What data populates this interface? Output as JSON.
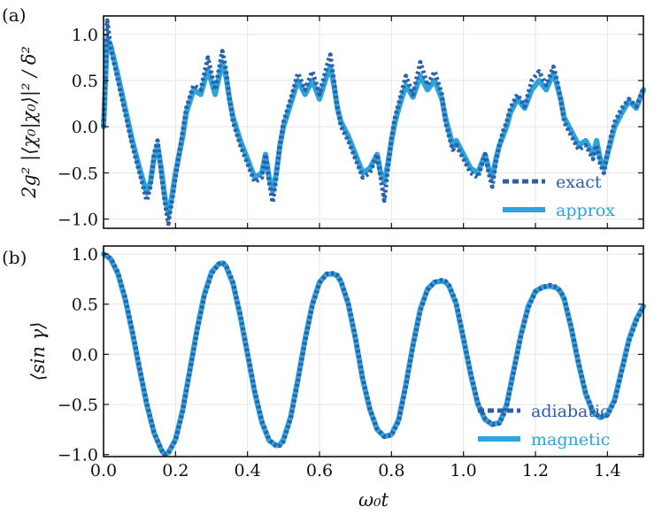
{
  "colors": {
    "exact": "#2b5fa8",
    "approx": "#2fa3dc",
    "adiabatic": "#2b5fa8",
    "magnetic": "#2fa3dc",
    "grid": "#e6e6e6"
  },
  "chart_data": [
    {
      "type": "line",
      "panel_label": "(a)",
      "ylabel": "2g² |⟨χ₀|χ₀⟩|² / δ²",
      "xlabel": "",
      "xlim": [
        0.0,
        1.5
      ],
      "ylim": [
        -1.1,
        1.2
      ],
      "xticks": [
        0.0,
        0.2,
        0.4,
        0.6,
        0.8,
        1.0,
        1.2,
        1.4
      ],
      "yticks": [
        -1.0,
        -0.5,
        0.0,
        0.5,
        1.0
      ],
      "ytick_labels": [
        "−1.0",
        "−0.5",
        "0.0",
        "0.5",
        "1.0"
      ],
      "xtick_labels": [
        "",
        "",
        "",
        "",
        "",
        "",
        "",
        ""
      ],
      "legend": [
        {
          "label": "exact",
          "style": "dashed",
          "color": "#2b5fa8"
        },
        {
          "label": "approx",
          "style": "solid",
          "color": "#2fa3dc"
        }
      ],
      "series": [
        {
          "name": "approx",
          "style": "solid",
          "color": "#2fa3dc",
          "x": [
            0.0,
            0.01,
            0.02,
            0.04,
            0.06,
            0.08,
            0.1,
            0.12,
            0.13,
            0.14,
            0.15,
            0.16,
            0.17,
            0.18,
            0.19,
            0.2,
            0.21,
            0.22,
            0.23,
            0.25,
            0.27,
            0.29,
            0.31,
            0.33,
            0.34,
            0.35,
            0.36,
            0.38,
            0.4,
            0.42,
            0.44,
            0.45,
            0.46,
            0.47,
            0.48,
            0.49,
            0.5,
            0.52,
            0.54,
            0.56,
            0.58,
            0.6,
            0.62,
            0.63,
            0.64,
            0.65,
            0.66,
            0.68,
            0.7,
            0.72,
            0.74,
            0.76,
            0.77,
            0.78,
            0.79,
            0.8,
            0.81,
            0.82,
            0.84,
            0.86,
            0.88,
            0.9,
            0.92,
            0.94,
            0.95,
            0.96,
            0.97,
            0.98,
            1.0,
            1.02,
            1.04,
            1.06,
            1.07,
            1.08,
            1.09,
            1.1,
            1.11,
            1.12,
            1.13,
            1.15,
            1.17,
            1.19,
            1.21,
            1.23,
            1.25,
            1.26,
            1.27,
            1.28,
            1.3,
            1.32,
            1.34,
            1.36,
            1.37,
            1.38,
            1.39,
            1.4,
            1.41,
            1.42,
            1.44,
            1.46,
            1.48,
            1.5
          ],
          "y": [
            0.0,
            0.95,
            0.88,
            0.55,
            0.2,
            -0.15,
            -0.45,
            -0.72,
            -0.6,
            -0.35,
            -0.2,
            -0.45,
            -0.75,
            -0.95,
            -0.75,
            -0.5,
            -0.3,
            -0.1,
            0.15,
            0.4,
            0.35,
            0.62,
            0.35,
            0.7,
            0.55,
            0.3,
            0.1,
            -0.15,
            -0.35,
            -0.55,
            -0.5,
            -0.3,
            -0.55,
            -0.7,
            -0.5,
            -0.2,
            0.0,
            0.25,
            0.5,
            0.35,
            0.5,
            0.3,
            0.55,
            0.65,
            0.45,
            0.2,
            0.05,
            -0.1,
            -0.3,
            -0.5,
            -0.45,
            -0.3,
            -0.5,
            -0.6,
            -0.4,
            -0.15,
            0.05,
            0.2,
            0.45,
            0.32,
            0.55,
            0.4,
            0.5,
            0.3,
            0.1,
            -0.05,
            -0.2,
            -0.15,
            -0.3,
            -0.45,
            -0.5,
            -0.3,
            -0.45,
            -0.55,
            -0.35,
            -0.2,
            -0.1,
            0.0,
            0.15,
            0.3,
            0.2,
            0.4,
            0.5,
            0.4,
            0.58,
            0.45,
            0.3,
            0.1,
            -0.05,
            -0.2,
            -0.15,
            -0.3,
            -0.15,
            -0.35,
            -0.45,
            -0.3,
            -0.15,
            0.0,
            0.15,
            0.28,
            0.2,
            0.4
          ]
        },
        {
          "name": "exact",
          "style": "dashed",
          "color": "#2b5fa8",
          "x": [
            0.0,
            0.01,
            0.02,
            0.04,
            0.06,
            0.08,
            0.1,
            0.12,
            0.13,
            0.14,
            0.15,
            0.16,
            0.17,
            0.18,
            0.19,
            0.2,
            0.21,
            0.22,
            0.23,
            0.25,
            0.27,
            0.29,
            0.31,
            0.33,
            0.34,
            0.35,
            0.36,
            0.38,
            0.4,
            0.42,
            0.44,
            0.45,
            0.46,
            0.47,
            0.48,
            0.49,
            0.5,
            0.52,
            0.54,
            0.56,
            0.58,
            0.6,
            0.62,
            0.63,
            0.64,
            0.65,
            0.66,
            0.68,
            0.7,
            0.72,
            0.74,
            0.76,
            0.77,
            0.78,
            0.79,
            0.8,
            0.81,
            0.82,
            0.84,
            0.86,
            0.88,
            0.9,
            0.92,
            0.94,
            0.95,
            0.96,
            0.97,
            0.98,
            1.0,
            1.02,
            1.04,
            1.06,
            1.07,
            1.08,
            1.09,
            1.1,
            1.11,
            1.12,
            1.13,
            1.15,
            1.17,
            1.19,
            1.21,
            1.23,
            1.25,
            1.26,
            1.27,
            1.28,
            1.3,
            1.32,
            1.34,
            1.36,
            1.37,
            1.38,
            1.39,
            1.4,
            1.41,
            1.42,
            1.44,
            1.46,
            1.48,
            1.5
          ],
          "y": [
            0.0,
            1.15,
            0.85,
            0.5,
            0.15,
            -0.2,
            -0.5,
            -0.8,
            -0.65,
            -0.3,
            -0.15,
            -0.5,
            -0.8,
            -1.05,
            -0.8,
            -0.55,
            -0.3,
            -0.05,
            0.2,
            0.45,
            0.4,
            0.75,
            0.4,
            0.82,
            0.62,
            0.3,
            0.05,
            -0.2,
            -0.4,
            -0.6,
            -0.55,
            -0.3,
            -0.6,
            -0.82,
            -0.55,
            -0.2,
            0.05,
            0.3,
            0.58,
            0.4,
            0.6,
            0.35,
            0.65,
            0.78,
            0.5,
            0.2,
            0.0,
            -0.15,
            -0.35,
            -0.55,
            -0.5,
            -0.3,
            -0.55,
            -0.8,
            -0.45,
            -0.12,
            0.1,
            0.25,
            0.55,
            0.35,
            0.7,
            0.45,
            0.6,
            0.35,
            0.05,
            -0.1,
            -0.25,
            -0.2,
            -0.35,
            -0.5,
            -0.55,
            -0.3,
            -0.5,
            -0.65,
            -0.38,
            -0.2,
            -0.05,
            0.05,
            0.2,
            0.35,
            0.22,
            0.5,
            0.6,
            0.45,
            0.65,
            0.5,
            0.3,
            0.05,
            -0.1,
            -0.25,
            -0.2,
            -0.35,
            -0.2,
            -0.4,
            -0.5,
            -0.3,
            -0.1,
            0.05,
            0.2,
            0.3,
            0.22,
            0.42
          ]
        }
      ]
    },
    {
      "type": "line",
      "panel_label": "(b)",
      "ylabel": "⟨sin γ⟩",
      "xlabel": "ω₀t",
      "xlim": [
        0.0,
        1.5
      ],
      "ylim": [
        -1.02,
        1.08
      ],
      "xticks": [
        0.0,
        0.2,
        0.4,
        0.6,
        0.8,
        1.0,
        1.2,
        1.4
      ],
      "xtick_labels": [
        "0.0",
        "0.2",
        "0.4",
        "0.6",
        "0.8",
        "1.0",
        "1.2",
        "1.4"
      ],
      "yticks": [
        -1.0,
        -0.5,
        0.0,
        0.5,
        1.0
      ],
      "ytick_labels": [
        "−1.0",
        "−0.5",
        "0.0",
        "0.5",
        "1.0"
      ],
      "legend": [
        {
          "label": "adiabatic",
          "style": "dashed",
          "color": "#2b5fa8"
        },
        {
          "label": "magnetic",
          "style": "solid",
          "color": "#2fa3dc"
        }
      ],
      "series": [
        {
          "name": "magnetic",
          "style": "solid",
          "color": "#2fa3dc",
          "x": [
            0.0,
            0.02,
            0.04,
            0.06,
            0.08,
            0.1,
            0.12,
            0.14,
            0.16,
            0.17,
            0.18,
            0.2,
            0.22,
            0.24,
            0.26,
            0.28,
            0.3,
            0.32,
            0.33,
            0.34,
            0.36,
            0.38,
            0.4,
            0.42,
            0.44,
            0.46,
            0.48,
            0.49,
            0.5,
            0.52,
            0.54,
            0.56,
            0.58,
            0.6,
            0.62,
            0.64,
            0.65,
            0.66,
            0.68,
            0.7,
            0.72,
            0.74,
            0.76,
            0.78,
            0.8,
            0.82,
            0.84,
            0.86,
            0.88,
            0.9,
            0.92,
            0.94,
            0.95,
            0.96,
            0.98,
            1.0,
            1.02,
            1.04,
            1.06,
            1.08,
            1.1,
            1.11,
            1.12,
            1.14,
            1.16,
            1.18,
            1.2,
            1.22,
            1.24,
            1.26,
            1.27,
            1.28,
            1.3,
            1.32,
            1.34,
            1.36,
            1.38,
            1.4,
            1.42,
            1.44,
            1.46,
            1.48,
            1.5
          ],
          "y": [
            1.0,
            0.95,
            0.8,
            0.55,
            0.22,
            -0.15,
            -0.5,
            -0.78,
            -0.95,
            -1.0,
            -0.98,
            -0.85,
            -0.55,
            -0.15,
            0.25,
            0.6,
            0.82,
            0.9,
            0.91,
            0.88,
            0.7,
            0.38,
            0.0,
            -0.38,
            -0.68,
            -0.86,
            -0.91,
            -0.9,
            -0.85,
            -0.62,
            -0.25,
            0.15,
            0.5,
            0.72,
            0.8,
            0.8,
            0.78,
            0.72,
            0.5,
            0.15,
            -0.25,
            -0.55,
            -0.75,
            -0.82,
            -0.8,
            -0.65,
            -0.3,
            0.1,
            0.45,
            0.65,
            0.72,
            0.73,
            0.72,
            0.68,
            0.5,
            0.15,
            -0.2,
            -0.5,
            -0.65,
            -0.7,
            -0.68,
            -0.6,
            -0.5,
            -0.15,
            0.2,
            0.48,
            0.63,
            0.67,
            0.68,
            0.66,
            0.62,
            0.55,
            0.25,
            -0.1,
            -0.4,
            -0.58,
            -0.63,
            -0.6,
            -0.45,
            -0.15,
            0.15,
            0.35,
            0.48
          ]
        },
        {
          "name": "adiabatic",
          "style": "dashed",
          "color": "#2b5fa8",
          "x": [
            0.0,
            0.02,
            0.04,
            0.06,
            0.08,
            0.1,
            0.12,
            0.14,
            0.16,
            0.17,
            0.18,
            0.2,
            0.22,
            0.24,
            0.26,
            0.28,
            0.3,
            0.32,
            0.33,
            0.34,
            0.36,
            0.38,
            0.4,
            0.42,
            0.44,
            0.46,
            0.48,
            0.49,
            0.5,
            0.52,
            0.54,
            0.56,
            0.58,
            0.6,
            0.62,
            0.64,
            0.65,
            0.66,
            0.68,
            0.7,
            0.72,
            0.74,
            0.76,
            0.78,
            0.8,
            0.82,
            0.84,
            0.86,
            0.88,
            0.9,
            0.92,
            0.94,
            0.95,
            0.96,
            0.98,
            1.0,
            1.02,
            1.04,
            1.06,
            1.08,
            1.1,
            1.11,
            1.12,
            1.14,
            1.16,
            1.18,
            1.2,
            1.22,
            1.24,
            1.26,
            1.27,
            1.28,
            1.3,
            1.32,
            1.34,
            1.36,
            1.38,
            1.4,
            1.42,
            1.44,
            1.46,
            1.48,
            1.5
          ],
          "y": [
            1.0,
            0.96,
            0.82,
            0.57,
            0.24,
            -0.13,
            -0.48,
            -0.77,
            -0.95,
            -1.0,
            -0.99,
            -0.86,
            -0.57,
            -0.17,
            0.23,
            0.58,
            0.8,
            0.9,
            0.92,
            0.89,
            0.72,
            0.4,
            0.02,
            -0.36,
            -0.66,
            -0.85,
            -0.92,
            -0.91,
            -0.87,
            -0.64,
            -0.27,
            0.13,
            0.48,
            0.71,
            0.8,
            0.81,
            0.79,
            0.73,
            0.52,
            0.17,
            -0.23,
            -0.54,
            -0.74,
            -0.82,
            -0.81,
            -0.67,
            -0.32,
            0.08,
            0.43,
            0.64,
            0.72,
            0.74,
            0.73,
            0.69,
            0.52,
            0.17,
            -0.18,
            -0.48,
            -0.64,
            -0.7,
            -0.69,
            -0.62,
            -0.52,
            -0.17,
            0.18,
            0.46,
            0.62,
            0.67,
            0.69,
            0.67,
            0.63,
            0.56,
            0.27,
            -0.08,
            -0.38,
            -0.57,
            -0.63,
            -0.61,
            -0.47,
            -0.17,
            0.13,
            0.33,
            0.47
          ]
        }
      ]
    }
  ]
}
